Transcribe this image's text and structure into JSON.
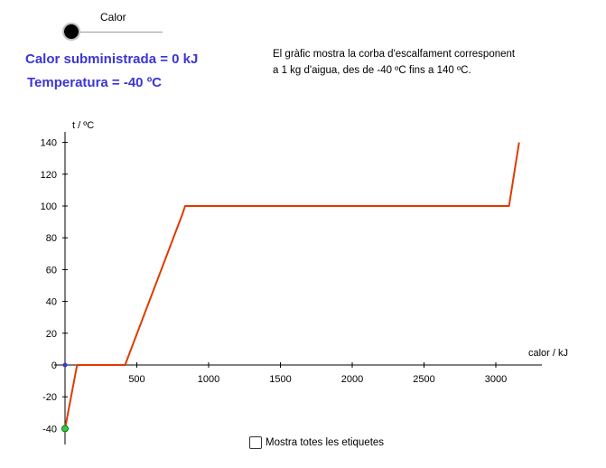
{
  "slider": {
    "label": "Calor",
    "value": 0
  },
  "readouts": {
    "heat": "Calor subministrada = 0 kJ",
    "temperature": "Temperatura = -40 ºC"
  },
  "description": {
    "line1": "El gràfic mostra la corba d'escalfament corresponent",
    "line2": "a 1 kg d'aigua, des de -40 ºC fins a 140 ºC."
  },
  "checkbox": {
    "label": "Mostra totes les etiquetes",
    "checked": false
  },
  "colors": {
    "curve": "#e03a00",
    "readout": "#3b35d6",
    "point": "#2ecc40"
  },
  "chart_data": {
    "type": "line",
    "xlabel": "calor / kJ",
    "ylabel": "t / ºC",
    "xlim": [
      0,
      3300
    ],
    "ylim": [
      -45,
      150
    ],
    "x_ticks": [
      500,
      1000,
      1500,
      2000,
      2500,
      3000
    ],
    "y_ticks": [
      -40,
      -20,
      0,
      20,
      40,
      60,
      80,
      100,
      120,
      140
    ],
    "series": [
      {
        "x": [
          0,
          84,
          418,
          818,
          836,
          3092,
          3162
        ],
        "y": [
          -40,
          0,
          0,
          95,
          100,
          100,
          140
        ]
      }
    ],
    "current_point": {
      "x": 0,
      "y": -40
    },
    "origin_point": {
      "x": 0,
      "y": 0
    }
  }
}
